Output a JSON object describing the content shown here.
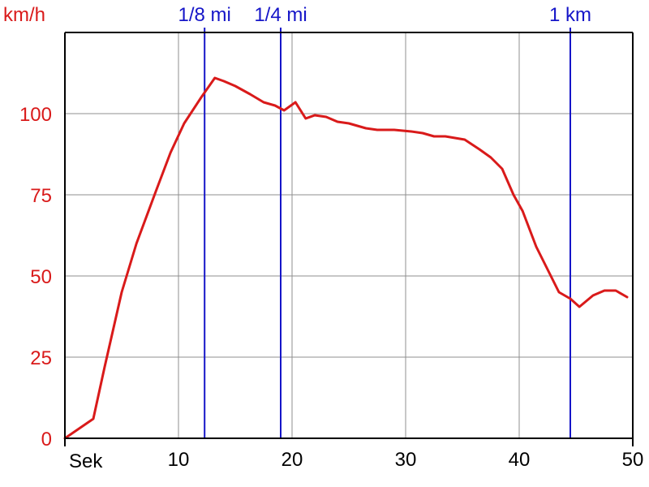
{
  "colors": {
    "speed": "#d91a1a",
    "marker": "#1515c8",
    "axis": "#000000",
    "grid": "#8f8f8f",
    "background": "#ffffff"
  },
  "chart_data": {
    "type": "line",
    "ylabel": "km/h",
    "xlabel": "Sek",
    "xlim": [
      0,
      50
    ],
    "ylim": [
      0,
      125
    ],
    "grid": true,
    "x_ticks": [
      {
        "value": 10,
        "label": "10"
      },
      {
        "value": 20,
        "label": "20"
      },
      {
        "value": 30,
        "label": "30"
      },
      {
        "value": 40,
        "label": "40"
      },
      {
        "value": 50,
        "label": "50"
      }
    ],
    "y_ticks": [
      {
        "value": 0,
        "label": "0"
      },
      {
        "value": 25,
        "label": "25"
      },
      {
        "value": 50,
        "label": "50"
      },
      {
        "value": 75,
        "label": "75"
      },
      {
        "value": 100,
        "label": "100"
      }
    ],
    "grid_y": [
      0,
      25,
      50,
      75,
      100,
      125
    ],
    "grid_x": [
      10,
      20,
      30,
      40
    ],
    "markers": [
      {
        "x": 12.3,
        "label": "1/8 mi"
      },
      {
        "x": 19.0,
        "label": "1/4 mi"
      },
      {
        "x": 44.5,
        "label": "1 km"
      }
    ],
    "series": [
      {
        "x": [
          0,
          2.5,
          3.5,
          5,
          6.3,
          8,
          9.3,
          10.5,
          12,
          13.2,
          14,
          15,
          16.3,
          17.5,
          18.5,
          19.3,
          20.3,
          21.2,
          22,
          23,
          24,
          25,
          26.5,
          27.5,
          29,
          30.5,
          31.5,
          32.5,
          33.5,
          35.2,
          36.5,
          37.5,
          38.5,
          39.5,
          40.3,
          41.5,
          42.5,
          43.5,
          44.5,
          45.3,
          46.5,
          47.5,
          48.5,
          49.5
        ],
        "y": [
          0,
          6,
          22,
          45,
          60,
          76,
          88,
          97,
          105,
          111,
          110,
          108.5,
          106,
          103.5,
          102.5,
          101,
          103.5,
          98.5,
          99.5,
          99,
          97.5,
          97,
          95.5,
          95,
          95,
          94.5,
          94,
          93,
          93,
          92,
          89,
          86.5,
          83,
          75,
          70,
          59,
          52,
          45,
          43,
          40.5,
          44,
          45.5,
          45.5,
          43.5
        ]
      }
    ]
  }
}
